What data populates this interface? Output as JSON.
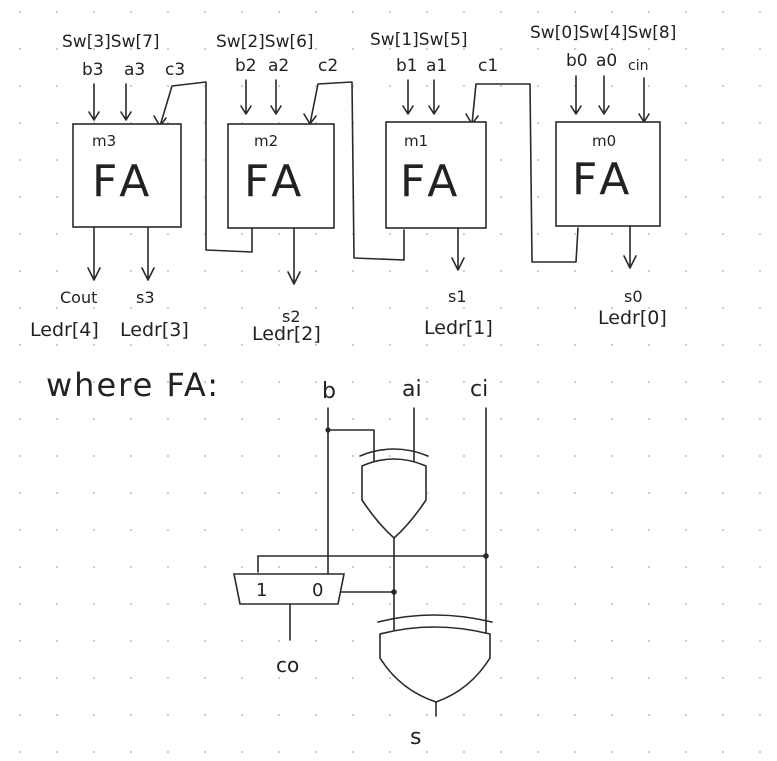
{
  "colors": {
    "ink": "#2a2a2a",
    "grid_dot": "#c8c8c8",
    "paper": "#ffffff"
  },
  "adders": [
    {
      "id": "m3",
      "module": "m3",
      "label": "FA",
      "sw_top": "Sw[3]Sw[7]",
      "in_b": "b3",
      "in_a": "a3",
      "in_c": "c3",
      "out_sum": "s3",
      "out_sum_led": "Ledr[3]",
      "out_carry": "Cout",
      "out_carry_led": "Ledr[4]"
    },
    {
      "id": "m2",
      "module": "m2",
      "label": "FA",
      "sw_top": "Sw[2]Sw[6]",
      "in_b": "b2",
      "in_a": "a2",
      "in_c": "c2",
      "out_sum": "s2",
      "out_sum_led": "Ledr[2]"
    },
    {
      "id": "m1",
      "module": "m1",
      "label": "FA",
      "sw_top": "Sw[1]Sw[5]",
      "in_b": "b1",
      "in_a": "a1",
      "in_c": "c1",
      "out_sum": "s1",
      "out_sum_led": "Ledr[1]"
    },
    {
      "id": "m0",
      "module": "m0",
      "label": "FA",
      "sw_top": "Sw[0]Sw[4]Sw[8]",
      "in_b": "b0",
      "in_a": "a0",
      "in_c": "cin",
      "out_sum": "s0",
      "out_sum_led": "Ledr[0]"
    }
  ],
  "detail": {
    "heading": "where FA:",
    "input_b": "b",
    "input_a": "ai",
    "input_c": "ci",
    "mux_in1": "1",
    "mux_in0": "0",
    "out_carry": "co",
    "out_sum": "s"
  }
}
